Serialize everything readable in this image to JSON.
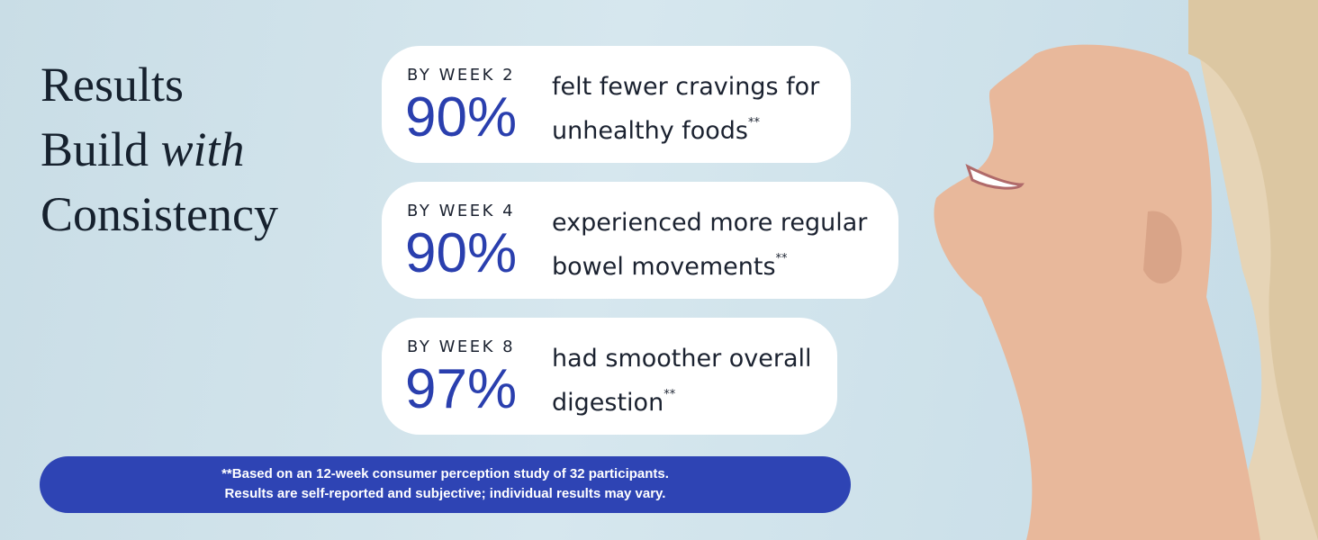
{
  "title": {
    "line1": "Results",
    "line2_regular": "Build",
    "line2_italic": "with",
    "line3": "Consistency"
  },
  "cards": [
    {
      "label": "BY WEEK 2",
      "stat": "90%",
      "text_line1": "felt fewer cravings for",
      "text_line2": "unhealthy foods",
      "mark": "**"
    },
    {
      "label": "BY WEEK 4",
      "stat": "90%",
      "text_line1": "experienced more regular",
      "text_line2": "bowel movements",
      "mark": "**"
    },
    {
      "label": "BY WEEK 8",
      "stat": "97%",
      "text_line1": "had smoother overall",
      "text_line2": "digestion",
      "mark": "**"
    }
  ],
  "footnote": {
    "line1": "**Based on an 12-week consumer perception study of 32 participants.",
    "line2": "Results are self-reported and subjective; individual results may vary."
  }
}
